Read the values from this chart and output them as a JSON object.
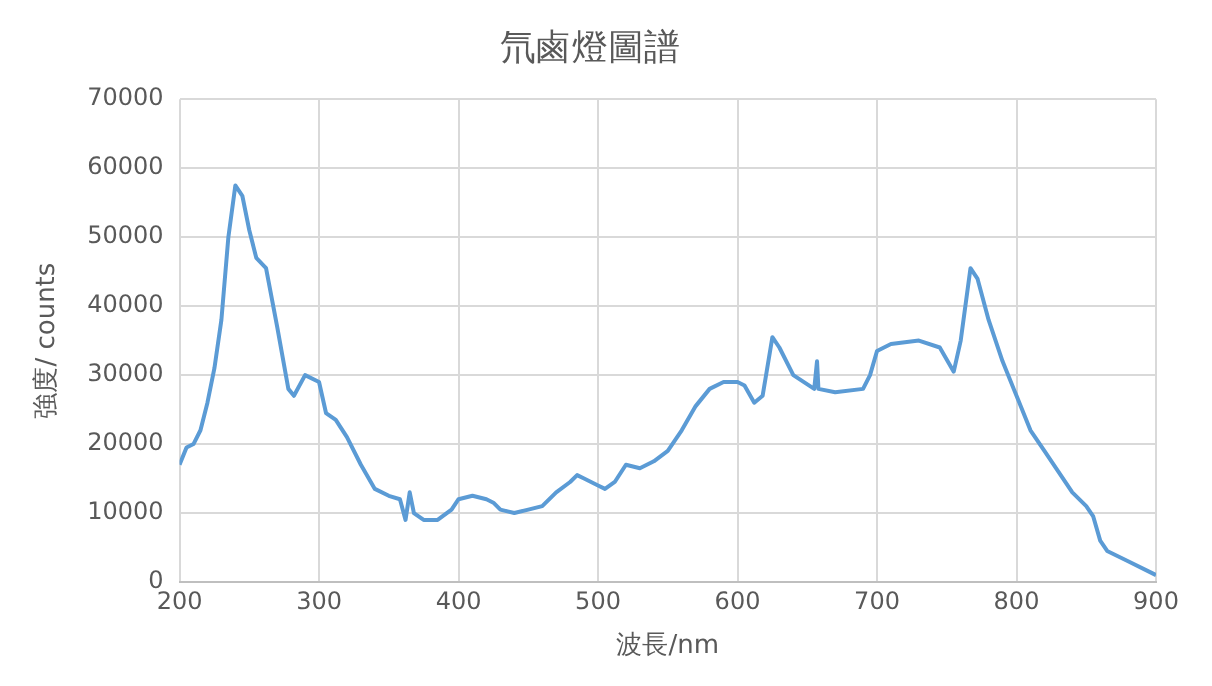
{
  "chart_data": {
    "type": "line",
    "title": "氘鹵燈圖譜",
    "xlabel": "波長/nm",
    "ylabel": "強度/ counts",
    "xlim": [
      200,
      900
    ],
    "xticks": [
      200,
      300,
      400,
      500,
      600,
      700,
      800,
      900
    ],
    "ylim": [
      0,
      70000
    ],
    "yticks": [
      0,
      10000,
      20000,
      30000,
      40000,
      50000,
      60000,
      70000
    ],
    "grid": true,
    "legend": false,
    "marker": "none",
    "line_style": "solid",
    "series": [
      {
        "color": "#5b9bd5",
        "x": [
          200,
          205,
          210,
          215,
          220,
          225,
          230,
          235,
          240,
          245,
          250,
          255,
          262,
          270,
          278,
          282,
          290,
          300,
          305,
          312,
          320,
          330,
          340,
          350,
          358,
          362,
          365,
          368,
          375,
          385,
          395,
          400,
          410,
          420,
          425,
          430,
          440,
          450,
          460,
          470,
          480,
          485,
          490,
          500,
          505,
          512,
          520,
          530,
          540,
          550,
          560,
          570,
          580,
          590,
          600,
          605,
          612,
          618,
          625,
          630,
          640,
          655,
          657,
          658,
          670,
          690,
          695,
          700,
          710,
          730,
          745,
          755,
          760,
          767,
          772,
          780,
          790,
          800,
          810,
          820,
          830,
          840,
          850,
          855,
          860,
          865,
          880,
          895,
          900
        ],
        "values": [
          17000,
          19500,
          20000,
          22000,
          26000,
          31000,
          38000,
          50000,
          57500,
          56000,
          51000,
          47000,
          45500,
          37000,
          28000,
          27000,
          30000,
          29000,
          24500,
          23500,
          21000,
          17000,
          13500,
          12500,
          12000,
          9000,
          13000,
          10000,
          9000,
          9000,
          10500,
          12000,
          12500,
          12000,
          11500,
          10500,
          10000,
          10500,
          11000,
          13000,
          14500,
          15500,
          15000,
          14000,
          13500,
          14500,
          17000,
          16500,
          17500,
          19000,
          22000,
          25500,
          28000,
          29000,
          29000,
          28500,
          26000,
          27000,
          35500,
          34000,
          30000,
          28000,
          32000,
          28000,
          27500,
          28000,
          30000,
          33500,
          34500,
          35000,
          34000,
          30500,
          35000,
          45500,
          44000,
          38000,
          32000,
          27000,
          22000,
          19000,
          16000,
          13000,
          11000,
          9500,
          6000,
          4500,
          3000,
          1500,
          1000
        ]
      }
    ]
  }
}
